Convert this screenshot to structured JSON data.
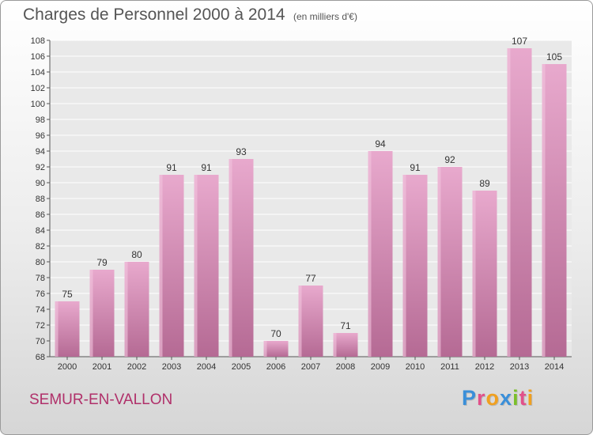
{
  "chart_data": {
    "type": "bar",
    "title": "Charges de Personnel 2000 à 2014",
    "subtitle": "(en milliers d'€)",
    "categories": [
      "2000",
      "2001",
      "2002",
      "2003",
      "2004",
      "2005",
      "2006",
      "2007",
      "2008",
      "2009",
      "2010",
      "2011",
      "2012",
      "2013",
      "2014"
    ],
    "values": [
      75,
      79,
      80,
      91,
      91,
      93,
      70,
      77,
      71,
      94,
      91,
      92,
      89,
      107,
      105
    ],
    "xlabel": "",
    "ylabel": "",
    "ylim": [
      68,
      108
    ],
    "yticks": [
      68,
      70,
      72,
      74,
      76,
      78,
      80,
      82,
      84,
      86,
      88,
      90,
      92,
      94,
      96,
      98,
      100,
      102,
      104,
      106,
      108
    ],
    "grid": true,
    "bar_color": "#d98ab5"
  },
  "footer": {
    "place": "SEMUR-EN-VALLON"
  },
  "logo": {
    "letters": [
      {
        "ch": "P",
        "color": "#3a8fd9"
      },
      {
        "ch": "r",
        "color": "#e2508a"
      },
      {
        "ch": "o",
        "color": "#f0a020"
      },
      {
        "ch": "x",
        "color": "#3a8fd9"
      },
      {
        "ch": "i",
        "color": "#7bbf2a"
      },
      {
        "ch": "t",
        "color": "#e2508a"
      },
      {
        "ch": "i",
        "color": "#f0a020"
      }
    ]
  }
}
